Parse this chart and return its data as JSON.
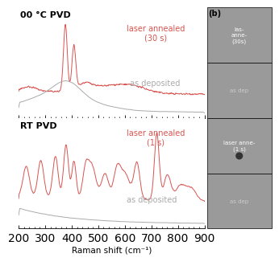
{
  "title_top": "00 °C PVD",
  "title_bottom": "RT PVD",
  "xlabel": "Raman shift (cm⁻¹)",
  "xlim": [
    200,
    900
  ],
  "label_laser_top": "laser annealed\n(30 s)",
  "label_as_dep_top": "as deposited",
  "label_laser_bottom": "laser annealed\n(1 s)",
  "label_as_dep_bottom": "as deposited",
  "color_laser": "#d9534f",
  "color_as_dep": "#aaaaaa",
  "background": "#ffffff",
  "panel_color": "#aaaaaa",
  "panel_b_label": "(b)"
}
